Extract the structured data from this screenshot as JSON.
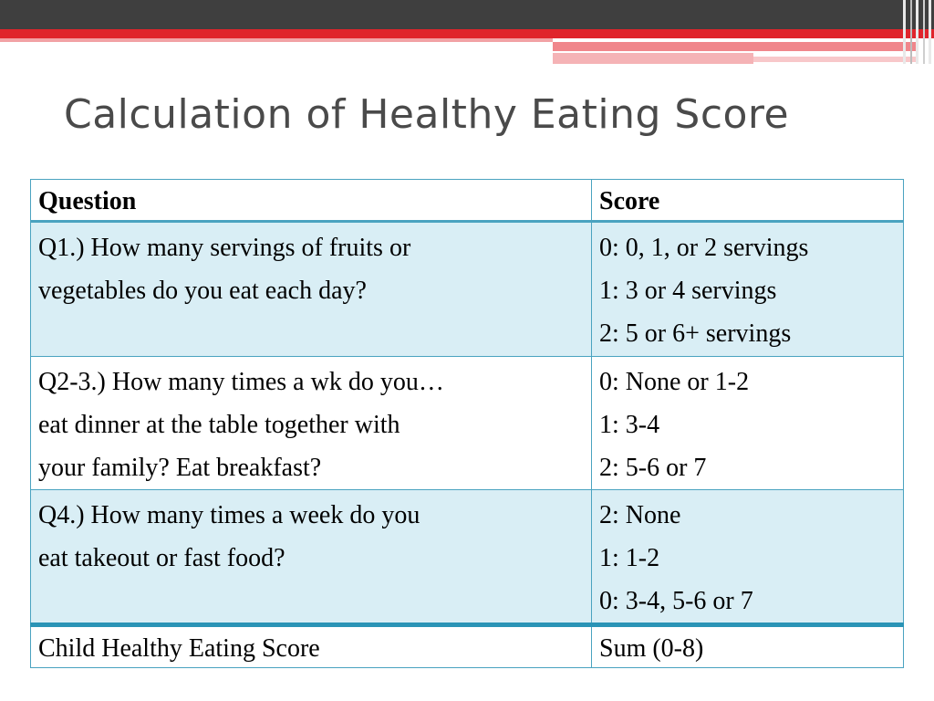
{
  "slide": {
    "title": "Calculation of Healthy Eating Score"
  },
  "table": {
    "headers": {
      "question": "Question",
      "score": "Score"
    },
    "rows": [
      {
        "question": [
          "Q1.) How many servings of fruits or",
          "vegetables do you eat each day?"
        ],
        "score": [
          "0: 0, 1, or 2 servings",
          "1:  3 or 4 servings",
          "2: 5 or 6+ servings"
        ]
      },
      {
        "question": [
          "Q2-3.) How many times a wk do you…",
          "eat dinner at the table together with",
          "your family? Eat breakfast?"
        ],
        "score": [
          "0: None or 1-2",
          "1: 3-4",
          "2: 5-6 or 7"
        ]
      },
      {
        "question": [
          "Q4.) How many times a week do you",
          "eat takeout or fast food?"
        ],
        "score": [
          "2: None",
          "1: 1-2",
          "0: 3-4, 5-6 or 7"
        ]
      }
    ],
    "footer": {
      "question": "Child Healthy Eating Score",
      "score": "Sum (0-8)"
    }
  }
}
